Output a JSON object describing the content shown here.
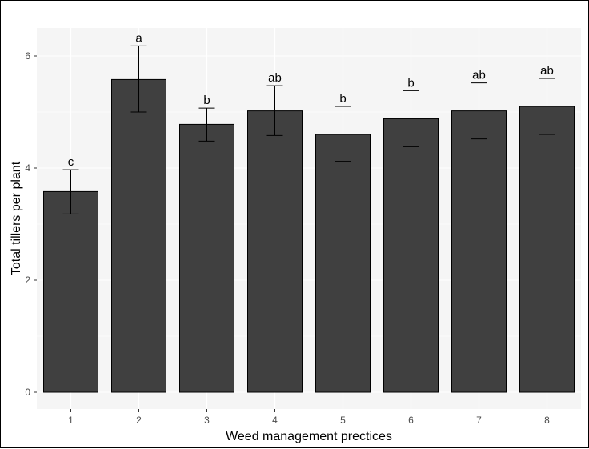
{
  "chart_data": {
    "type": "bar",
    "title": "",
    "xlabel": "Weed management prectices",
    "ylabel": "Total tillers per plant",
    "categories": [
      "1",
      "2",
      "3",
      "4",
      "5",
      "6",
      "7",
      "8"
    ],
    "values": [
      3.58,
      5.58,
      4.78,
      5.02,
      4.6,
      4.88,
      5.02,
      5.1
    ],
    "error_low": [
      3.18,
      5.0,
      4.48,
      4.58,
      4.12,
      4.38,
      4.52,
      4.6
    ],
    "error_high": [
      3.97,
      6.18,
      5.07,
      5.47,
      5.1,
      5.38,
      5.52,
      5.6
    ],
    "labels": [
      "c",
      "a",
      "b",
      "ab",
      "b",
      "b",
      "ab",
      "ab"
    ],
    "yticks": [
      0,
      2,
      4,
      6
    ],
    "ylim": [
      -0.3,
      6.5
    ],
    "grid": true,
    "legend": "none",
    "colors": {
      "bar_fill": "#404040",
      "bar_stroke": "#000000",
      "panel_background": "#f5f5f5",
      "gridline": "#ffffff"
    }
  }
}
